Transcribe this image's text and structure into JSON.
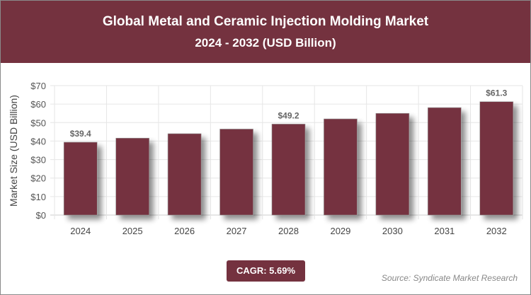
{
  "header": {
    "title": "Global Metal and Ceramic Injection Molding Market",
    "subtitle": "2024 - 2032 (USD Billion)"
  },
  "chart_data": {
    "type": "bar",
    "categories": [
      "2024",
      "2025",
      "2026",
      "2027",
      "2028",
      "2029",
      "2030",
      "2031",
      "2032"
    ],
    "values": [
      39.4,
      41.6,
      44.0,
      46.5,
      49.2,
      52.0,
      55.0,
      58.1,
      61.3
    ],
    "data_labels": {
      "0": "$39.4",
      "4": "$49.2",
      "8": "$61.3"
    },
    "ylabel": "Market Size (USD Billion)",
    "xlabel": "",
    "ylim": [
      0,
      70
    ],
    "yticks": [
      "$0",
      "$10",
      "$20",
      "$30",
      "$40",
      "$50",
      "$60",
      "$70"
    ],
    "grid": true,
    "bar_color": "#74323f"
  },
  "footer": {
    "cagr": "CAGR: 5.69%",
    "source": "Source: Syndicate Market Research"
  }
}
